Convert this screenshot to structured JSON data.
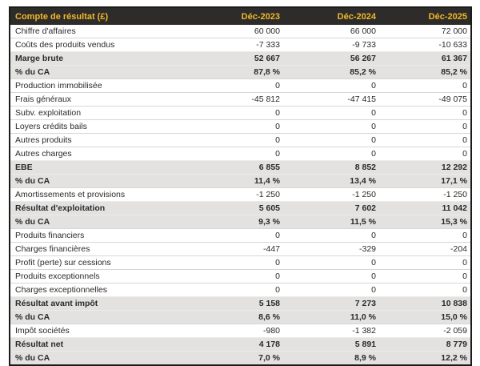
{
  "table": {
    "title": "Compte de résultat (£)",
    "columns": [
      "Déc-2023",
      "Déc-2024",
      "Déc-2025"
    ],
    "rows": [
      {
        "label": "Chiffre d'affaires",
        "values": [
          "60 000",
          "66 000",
          "72 000"
        ],
        "emphasis": false
      },
      {
        "label": "Coûts des produits vendus",
        "values": [
          "-7 333",
          "-9 733",
          "-10 633"
        ],
        "emphasis": false
      },
      {
        "label": "Marge brute",
        "values": [
          "52 667",
          "56 267",
          "61 367"
        ],
        "emphasis": true
      },
      {
        "label": "% du CA",
        "values": [
          "87,8 %",
          "85,2 %",
          "85,2 %"
        ],
        "emphasis": true
      },
      {
        "label": "Production immobilisée",
        "values": [
          "0",
          "0",
          "0"
        ],
        "emphasis": false
      },
      {
        "label": "Frais généraux",
        "values": [
          "-45 812",
          "-47 415",
          "-49 075"
        ],
        "emphasis": false
      },
      {
        "label": "Subv. exploitation",
        "values": [
          "0",
          "0",
          "0"
        ],
        "emphasis": false
      },
      {
        "label": "Loyers crédits bails",
        "values": [
          "0",
          "0",
          "0"
        ],
        "emphasis": false
      },
      {
        "label": "Autres produits",
        "values": [
          "0",
          "0",
          "0"
        ],
        "emphasis": false
      },
      {
        "label": "Autres charges",
        "values": [
          "0",
          "0",
          "0"
        ],
        "emphasis": false
      },
      {
        "label": "EBE",
        "values": [
          "6 855",
          "8 852",
          "12 292"
        ],
        "emphasis": true
      },
      {
        "label": "% du CA",
        "values": [
          "11,4 %",
          "13,4 %",
          "17,1 %"
        ],
        "emphasis": true
      },
      {
        "label": "Amortissements et provisions",
        "values": [
          "-1 250",
          "-1 250",
          "-1 250"
        ],
        "emphasis": false
      },
      {
        "label": "Résultat d'exploitation",
        "values": [
          "5 605",
          "7 602",
          "11 042"
        ],
        "emphasis": true
      },
      {
        "label": "% du CA",
        "values": [
          "9,3 %",
          "11,5 %",
          "15,3 %"
        ],
        "emphasis": true
      },
      {
        "label": "Produits financiers",
        "values": [
          "0",
          "0",
          "0"
        ],
        "emphasis": false
      },
      {
        "label": "Charges financières",
        "values": [
          "-447",
          "-329",
          "-204"
        ],
        "emphasis": false
      },
      {
        "label": "Profit (perte) sur cessions",
        "values": [
          "0",
          "0",
          "0"
        ],
        "emphasis": false
      },
      {
        "label": "Produits exceptionnels",
        "values": [
          "0",
          "0",
          "0"
        ],
        "emphasis": false
      },
      {
        "label": "Charges exceptionnelles",
        "values": [
          "0",
          "0",
          "0"
        ],
        "emphasis": false
      },
      {
        "label": "Résultat avant impôt",
        "values": [
          "5 158",
          "7 273",
          "10 838"
        ],
        "emphasis": true
      },
      {
        "label": "% du CA",
        "values": [
          "8,6 %",
          "11,0 %",
          "15,0 %"
        ],
        "emphasis": true
      },
      {
        "label": "Impôt sociétés",
        "values": [
          "-980",
          "-1 382",
          "-2 059"
        ],
        "emphasis": false
      },
      {
        "label": "Résultat net",
        "values": [
          "4 178",
          "5 891",
          "8 779"
        ],
        "emphasis": true
      },
      {
        "label": "% du CA",
        "values": [
          "7,0 %",
          "8,9 %",
          "12,2 %"
        ],
        "emphasis": true
      }
    ],
    "colors": {
      "header_bg": "#2e2c2b",
      "header_text": "#f2b827",
      "band_bg": "#e3e2e1",
      "row_bg": "#ffffff",
      "outer_border": "#1d1b1a",
      "row_divider": "#d8d7d5",
      "body_text": "#2a2a2a"
    }
  }
}
